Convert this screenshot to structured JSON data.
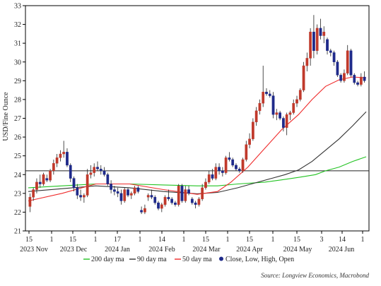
{
  "chart_data": {
    "type": "candlestick",
    "ylabel": "USD/Fine Ounce",
    "ylim": [
      21,
      33
    ],
    "yticks": [
      21,
      22,
      23,
      24,
      25,
      26,
      27,
      28,
      29,
      30,
      31,
      32,
      33
    ],
    "x_day_ticks": [
      "15",
      "1",
      "15",
      "1",
      "17",
      "1",
      "14",
      "1",
      "15",
      "1",
      "15",
      "1",
      "15",
      "3",
      "14",
      "1"
    ],
    "x_month_labels": [
      "2023 Nov",
      "2023 Dec",
      "2024 Jan",
      "2024 Feb",
      "2024 Mar",
      "2024 Apr",
      "2024 May",
      "2024 Jun"
    ],
    "reference_line": 24.2,
    "up_color": "#c0392b",
    "down_color": "#1f2a8a",
    "ohlc": [
      [
        22.3,
        23.0,
        22.0,
        22.8
      ],
      [
        22.8,
        23.3,
        22.6,
        23.2
      ],
      [
        23.2,
        23.8,
        23.0,
        23.6
      ],
      [
        23.6,
        24.0,
        23.3,
        23.5
      ],
      [
        23.5,
        24.1,
        23.4,
        24.0
      ],
      [
        23.8,
        24.0,
        23.6,
        23.7
      ],
      [
        23.7,
        24.3,
        23.6,
        24.2
      ],
      [
        24.2,
        24.8,
        24.0,
        24.6
      ],
      [
        24.6,
        25.1,
        24.4,
        24.9
      ],
      [
        24.9,
        25.3,
        24.7,
        25.1
      ],
      [
        25.1,
        25.8,
        24.9,
        25.2
      ],
      [
        25.2,
        25.4,
        24.4,
        24.5
      ],
      [
        24.5,
        24.6,
        23.6,
        23.8
      ],
      [
        23.8,
        23.9,
        23.1,
        23.3
      ],
      [
        23.3,
        23.5,
        22.7,
        22.9
      ],
      [
        22.9,
        23.2,
        22.6,
        22.8
      ],
      [
        22.8,
        23.0,
        22.5,
        22.9
      ],
      [
        22.9,
        24.3,
        22.8,
        24.0
      ],
      [
        24.0,
        24.5,
        23.8,
        24.1
      ],
      [
        24.1,
        24.6,
        23.9,
        24.4
      ],
      [
        24.4,
        24.7,
        24.2,
        24.3
      ],
      [
        24.3,
        24.5,
        24.0,
        24.2
      ],
      [
        24.2,
        24.4,
        23.9,
        24.0
      ],
      [
        24.0,
        24.1,
        23.4,
        23.5
      ],
      [
        23.5,
        23.7,
        23.0,
        23.2
      ],
      [
        23.2,
        23.4,
        22.9,
        23.1
      ],
      [
        23.1,
        23.3,
        22.8,
        23.0
      ],
      [
        23.0,
        23.2,
        22.4,
        22.6
      ],
      [
        22.6,
        23.3,
        22.5,
        23.2
      ],
      [
        23.2,
        23.3,
        22.8,
        22.9
      ],
      [
        22.9,
        23.1,
        22.7,
        23.0
      ],
      [
        23.0,
        23.4,
        22.9,
        23.3
      ],
      [
        23.3,
        23.4,
        23.0,
        23.1
      ],
      [
        22.1,
        22.3,
        21.9,
        22.0
      ],
      [
        22.0,
        22.4,
        21.9,
        22.2
      ],
      [
        22.8,
        23.0,
        22.6,
        22.9
      ],
      [
        22.9,
        23.2,
        22.7,
        22.8
      ],
      [
        22.8,
        22.9,
        22.4,
        22.5
      ],
      [
        22.5,
        22.6,
        22.1,
        22.2
      ],
      [
        22.2,
        22.5,
        22.0,
        22.4
      ],
      [
        22.4,
        22.9,
        22.3,
        22.8
      ],
      [
        22.8,
        23.2,
        22.6,
        22.7
      ],
      [
        22.7,
        22.8,
        22.4,
        22.5
      ],
      [
        22.5,
        22.6,
        22.3,
        22.4
      ],
      [
        22.4,
        23.5,
        22.3,
        23.4
      ],
      [
        23.4,
        23.5,
        22.5,
        22.6
      ],
      [
        22.6,
        23.4,
        22.5,
        23.2
      ],
      [
        23.2,
        23.4,
        22.9,
        23.0
      ],
      [
        22.7,
        22.8,
        22.4,
        22.5
      ],
      [
        22.5,
        22.6,
        22.2,
        22.4
      ],
      [
        22.4,
        22.8,
        22.3,
        22.7
      ],
      [
        22.7,
        23.5,
        22.6,
        23.3
      ],
      [
        23.3,
        23.8,
        23.2,
        23.6
      ],
      [
        23.6,
        24.2,
        23.5,
        24.0
      ],
      [
        24.0,
        24.3,
        23.7,
        23.8
      ],
      [
        23.8,
        24.6,
        23.7,
        24.4
      ],
      [
        24.4,
        24.6,
        24.0,
        24.2
      ],
      [
        24.2,
        24.4,
        23.9,
        24.1
      ],
      [
        24.1,
        25.0,
        24.0,
        24.9
      ],
      [
        24.9,
        25.2,
        24.7,
        24.8
      ],
      [
        24.8,
        24.9,
        24.4,
        24.5
      ],
      [
        24.5,
        24.6,
        24.2,
        24.3
      ],
      [
        24.3,
        24.4,
        24.1,
        24.2
      ],
      [
        24.2,
        24.9,
        24.1,
        24.8
      ],
      [
        24.8,
        25.8,
        24.7,
        25.6
      ],
      [
        25.6,
        26.2,
        25.4,
        25.9
      ],
      [
        25.9,
        27.0,
        25.8,
        26.8
      ],
      [
        26.8,
        27.6,
        26.6,
        27.4
      ],
      [
        27.4,
        28.0,
        27.2,
        27.8
      ],
      [
        27.8,
        29.8,
        27.6,
        28.4
      ],
      [
        28.4,
        28.6,
        28.2,
        28.3
      ],
      [
        28.3,
        28.5,
        28.1,
        28.2
      ],
      [
        28.2,
        28.4,
        27.0,
        27.2
      ],
      [
        27.2,
        27.5,
        26.9,
        27.3
      ],
      [
        27.3,
        27.4,
        26.9,
        27.0
      ],
      [
        27.0,
        27.1,
        26.3,
        26.5
      ],
      [
        26.5,
        27.3,
        26.1,
        27.2
      ],
      [
        27.2,
        27.4,
        26.9,
        27.3
      ],
      [
        27.3,
        28.0,
        27.2,
        27.8
      ],
      [
        27.8,
        28.2,
        27.6,
        28.0
      ],
      [
        28.0,
        28.6,
        27.9,
        28.5
      ],
      [
        28.5,
        30.0,
        28.4,
        29.8
      ],
      [
        29.8,
        30.5,
        29.5,
        30.2
      ],
      [
        30.2,
        31.8,
        29.8,
        31.6
      ],
      [
        31.6,
        32.5,
        30.2,
        30.6
      ],
      [
        30.6,
        32.0,
        30.4,
        31.8
      ],
      [
        31.8,
        32.3,
        31.2,
        31.4
      ],
      [
        31.4,
        31.9,
        31.0,
        31.6
      ],
      [
        31.2,
        31.3,
        30.4,
        30.6
      ],
      [
        30.6,
        30.7,
        30.3,
        30.5
      ],
      [
        30.5,
        30.6,
        29.8,
        30.0
      ],
      [
        30.0,
        30.1,
        29.2,
        29.3
      ],
      [
        29.3,
        29.4,
        28.9,
        29.0
      ],
      [
        29.0,
        29.6,
        28.9,
        29.4
      ],
      [
        29.4,
        30.9,
        29.3,
        30.6
      ],
      [
        30.6,
        30.7,
        29.2,
        29.3
      ],
      [
        29.3,
        29.4,
        28.8,
        28.9
      ],
      [
        28.9,
        29.0,
        28.7,
        28.8
      ],
      [
        28.8,
        29.4,
        28.7,
        29.2
      ],
      [
        29.2,
        29.5,
        28.9,
        29.0
      ]
    ],
    "series": [
      {
        "name": "200 day ma",
        "color": "#22c322",
        "values": [
          [
            0,
            23.3
          ],
          [
            10,
            23.4
          ],
          [
            20,
            23.5
          ],
          [
            30,
            23.5
          ],
          [
            40,
            23.45
          ],
          [
            50,
            23.4
          ],
          [
            56,
            23.4
          ],
          [
            62,
            23.5
          ],
          [
            70,
            23.6
          ],
          [
            75,
            23.72
          ],
          [
            80,
            23.85
          ],
          [
            85,
            24.0
          ],
          [
            88,
            24.2
          ],
          [
            92,
            24.4
          ],
          [
            96,
            24.7
          ],
          [
            100,
            24.95
          ]
        ]
      },
      {
        "name": "90 day ma",
        "color": "#333333",
        "values": [
          [
            0,
            23.1
          ],
          [
            10,
            23.25
          ],
          [
            20,
            23.4
          ],
          [
            30,
            23.3
          ],
          [
            40,
            23.1
          ],
          [
            50,
            22.98
          ],
          [
            56,
            23.05
          ],
          [
            62,
            23.3
          ],
          [
            68,
            23.6
          ],
          [
            72,
            23.8
          ],
          [
            76,
            24.0
          ],
          [
            80,
            24.25
          ],
          [
            84,
            24.7
          ],
          [
            88,
            25.3
          ],
          [
            92,
            25.9
          ],
          [
            96,
            26.6
          ],
          [
            100,
            27.35
          ]
        ]
      },
      {
        "name": "50 day ma",
        "color": "#ef2b2b",
        "values": [
          [
            0,
            22.6
          ],
          [
            10,
            23.0
          ],
          [
            20,
            23.5
          ],
          [
            30,
            23.5
          ],
          [
            40,
            23.2
          ],
          [
            50,
            22.95
          ],
          [
            56,
            23.1
          ],
          [
            60,
            23.6
          ],
          [
            65,
            24.4
          ],
          [
            70,
            25.4
          ],
          [
            75,
            26.4
          ],
          [
            80,
            27.2
          ],
          [
            84,
            28.0
          ],
          [
            88,
            28.7
          ],
          [
            92,
            29.05
          ],
          [
            96,
            29.2
          ],
          [
            100,
            29.15
          ]
        ]
      },
      {
        "name": "Close, Low, High, Open",
        "color": "#1f2a8a"
      }
    ],
    "grid": false,
    "legend_position": "bottom",
    "source": "Source: Longview Economics, Macrobond"
  }
}
